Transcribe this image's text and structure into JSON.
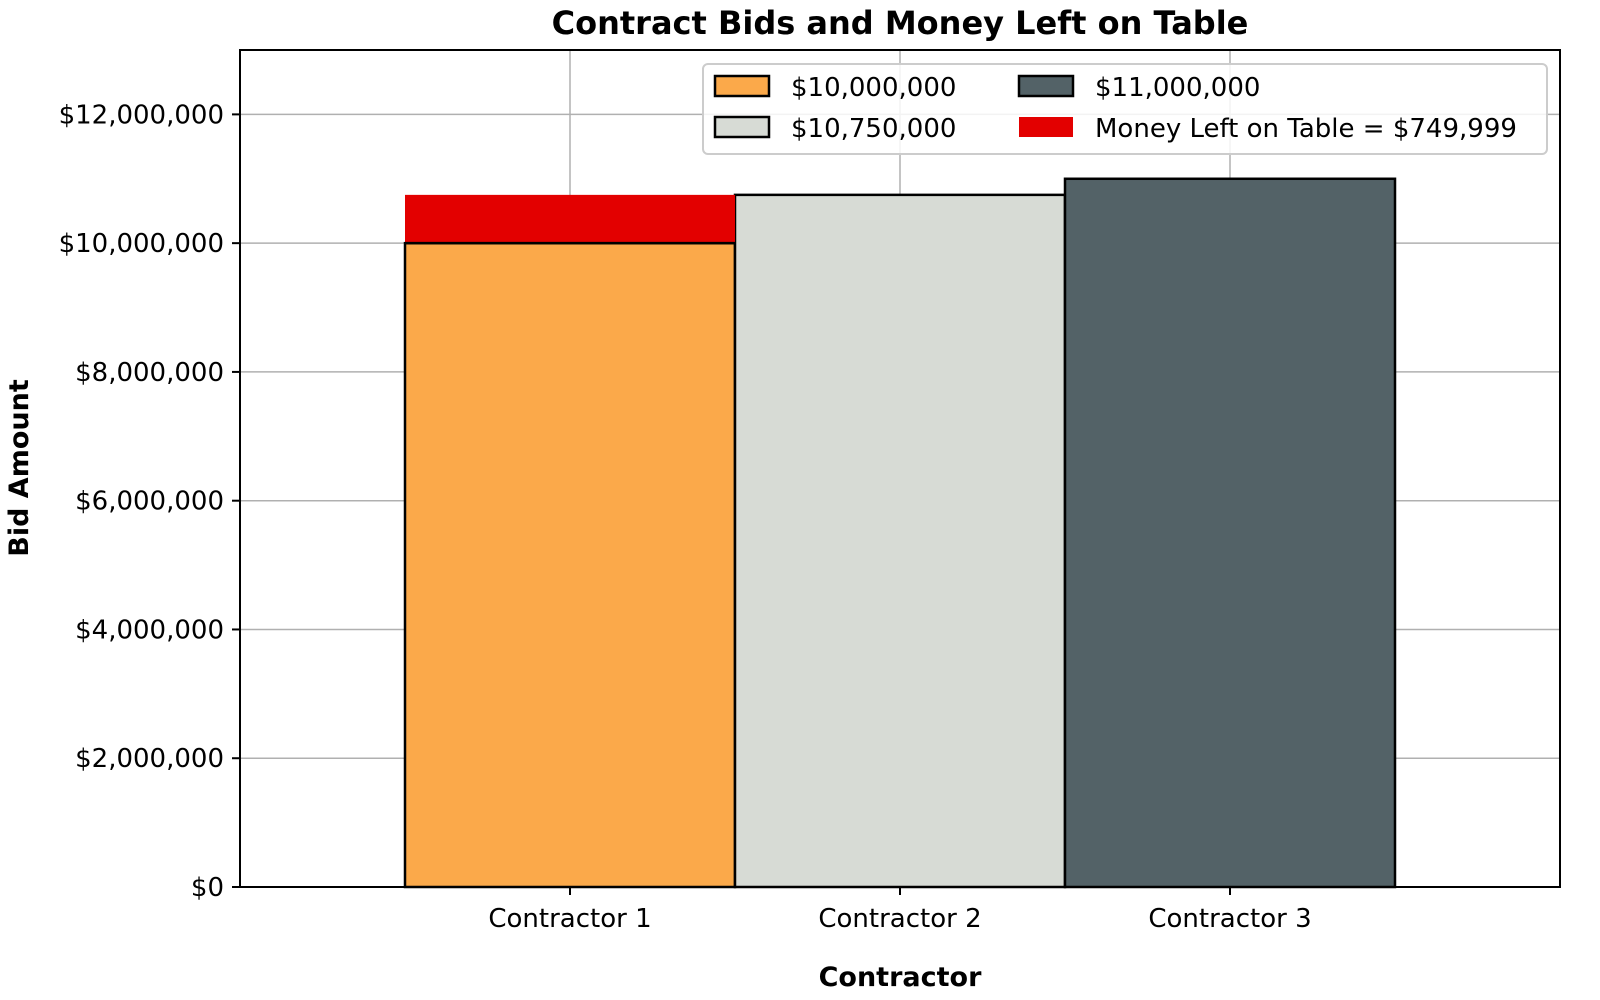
{
  "chart_data": {
    "type": "bar",
    "title": "Contract Bids and Money Left on Table",
    "xlabel": "Contractor",
    "ylabel": "Bid Amount",
    "categories": [
      "Contractor 1",
      "Contractor 2",
      "Contractor 3"
    ],
    "values": [
      10000000,
      10750000,
      11000000
    ],
    "bar_colors": [
      "#fba94a",
      "#d7dbd5",
      "#536267"
    ],
    "stacked_extra": {
      "category": "Contractor 1",
      "base": 10000000,
      "top": 10749999,
      "value": 749999,
      "color": "#e30000"
    },
    "ylim": [
      0,
      13000000
    ],
    "yticks": [
      0,
      2000000,
      4000000,
      6000000,
      8000000,
      10000000,
      12000000
    ],
    "ytick_labels": [
      "$0",
      "$2,000,000",
      "$4,000,000",
      "$6,000,000",
      "$8,000,000",
      "$10,000,000",
      "$12,000,000"
    ],
    "grid": true,
    "legend": {
      "placement": "top-right",
      "entries": [
        {
          "label": "$10,000,000",
          "color": "#fba94a",
          "outlined": true
        },
        {
          "label": "$10,750,000",
          "color": "#d7dbd5",
          "outlined": true
        },
        {
          "label": "$11,000,000",
          "color": "#536267",
          "outlined": true
        },
        {
          "label": "Money Left on Table = $749,999",
          "color": "#e30000",
          "outlined": false
        }
      ]
    }
  }
}
